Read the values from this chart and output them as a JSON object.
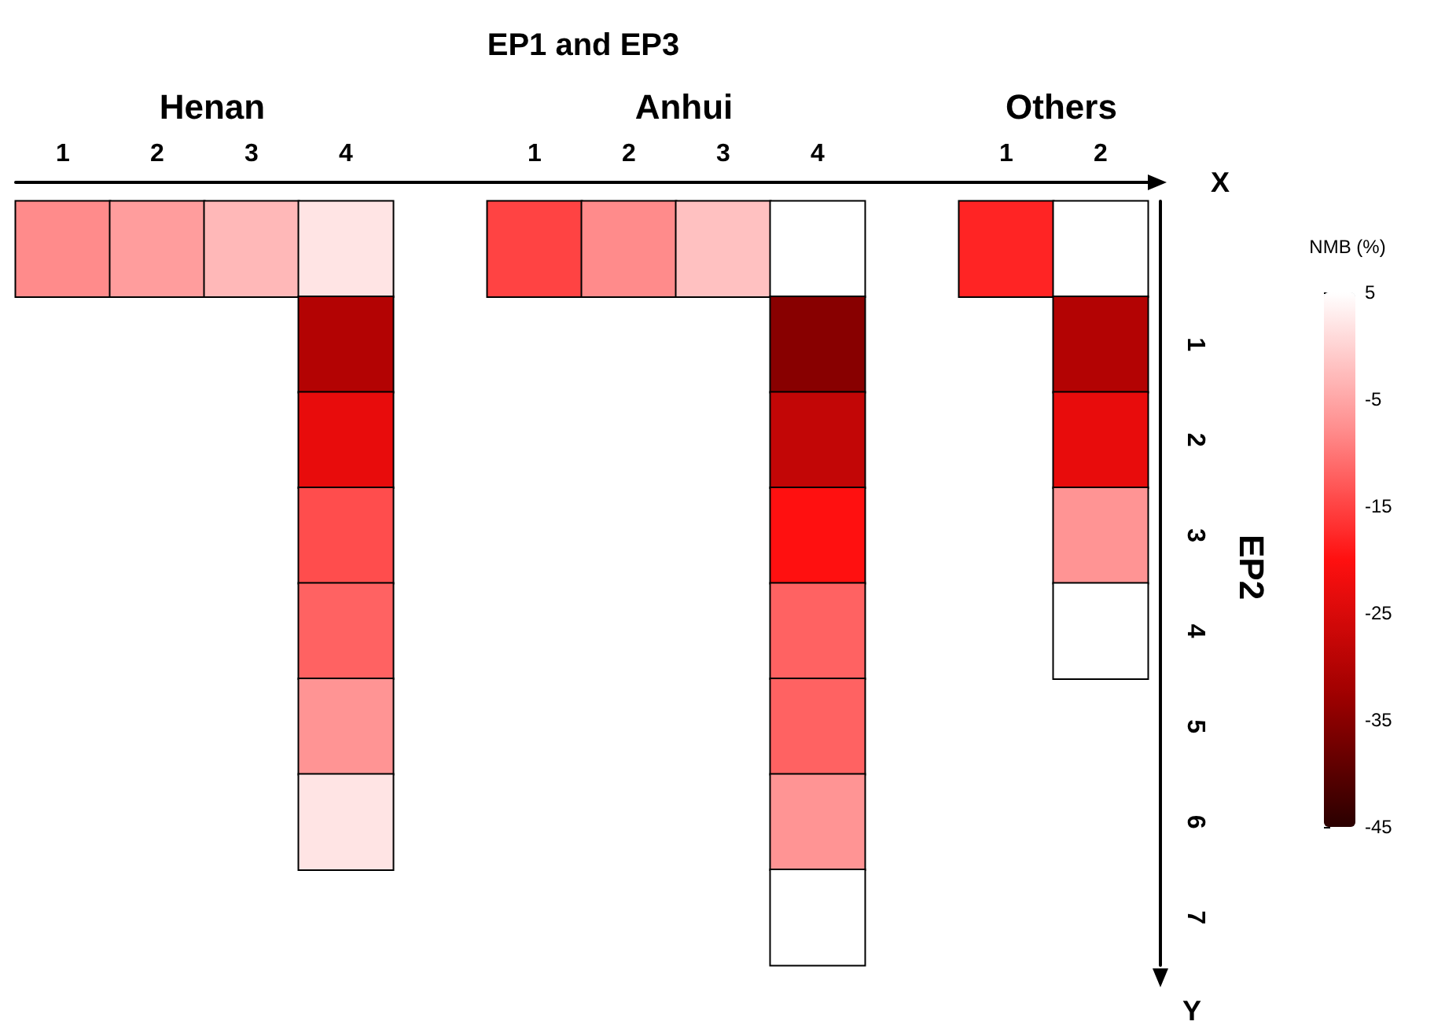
{
  "chart_data": {
    "type": "heatmap",
    "xlabel": "EP1 and EP3",
    "ylabel": "EP2",
    "annotations": [
      "Henan",
      "Anhui",
      "Others",
      "X",
      "Y"
    ],
    "categories": [
      "1",
      "2",
      "3",
      "4",
      null,
      "1",
      "2",
      "3",
      "4",
      null,
      "1",
      "2"
    ],
    "y_categories": [
      null,
      "1",
      "2",
      "3",
      "4",
      "5",
      "6",
      "7"
    ],
    "clim": [
      -45,
      5
    ],
    "cticks": [
      5,
      -5,
      -15,
      -25,
      -35,
      -45
    ],
    "clabel": "NMB (%)",
    "cells": [
      [
        -8,
        -6,
        -3,
        2,
        null,
        -15,
        -8,
        -2,
        5,
        null,
        -18,
        5
      ],
      [
        null,
        null,
        null,
        -30,
        null,
        null,
        null,
        null,
        -35,
        null,
        null,
        -30
      ],
      [
        null,
        null,
        null,
        -23,
        null,
        null,
        null,
        null,
        -28,
        null,
        null,
        -23
      ],
      [
        null,
        null,
        null,
        -14,
        null,
        null,
        null,
        null,
        -20,
        null,
        null,
        -7
      ],
      [
        null,
        null,
        null,
        -12,
        null,
        null,
        null,
        null,
        -12,
        null,
        null,
        5
      ],
      [
        null,
        null,
        null,
        -7,
        null,
        null,
        null,
        null,
        -12,
        null,
        null,
        null
      ],
      [
        null,
        null,
        null,
        2,
        null,
        null,
        null,
        null,
        -7,
        null,
        null,
        null
      ],
      [
        null,
        null,
        null,
        null,
        null,
        null,
        null,
        null,
        5,
        null,
        null,
        null
      ]
    ]
  }
}
